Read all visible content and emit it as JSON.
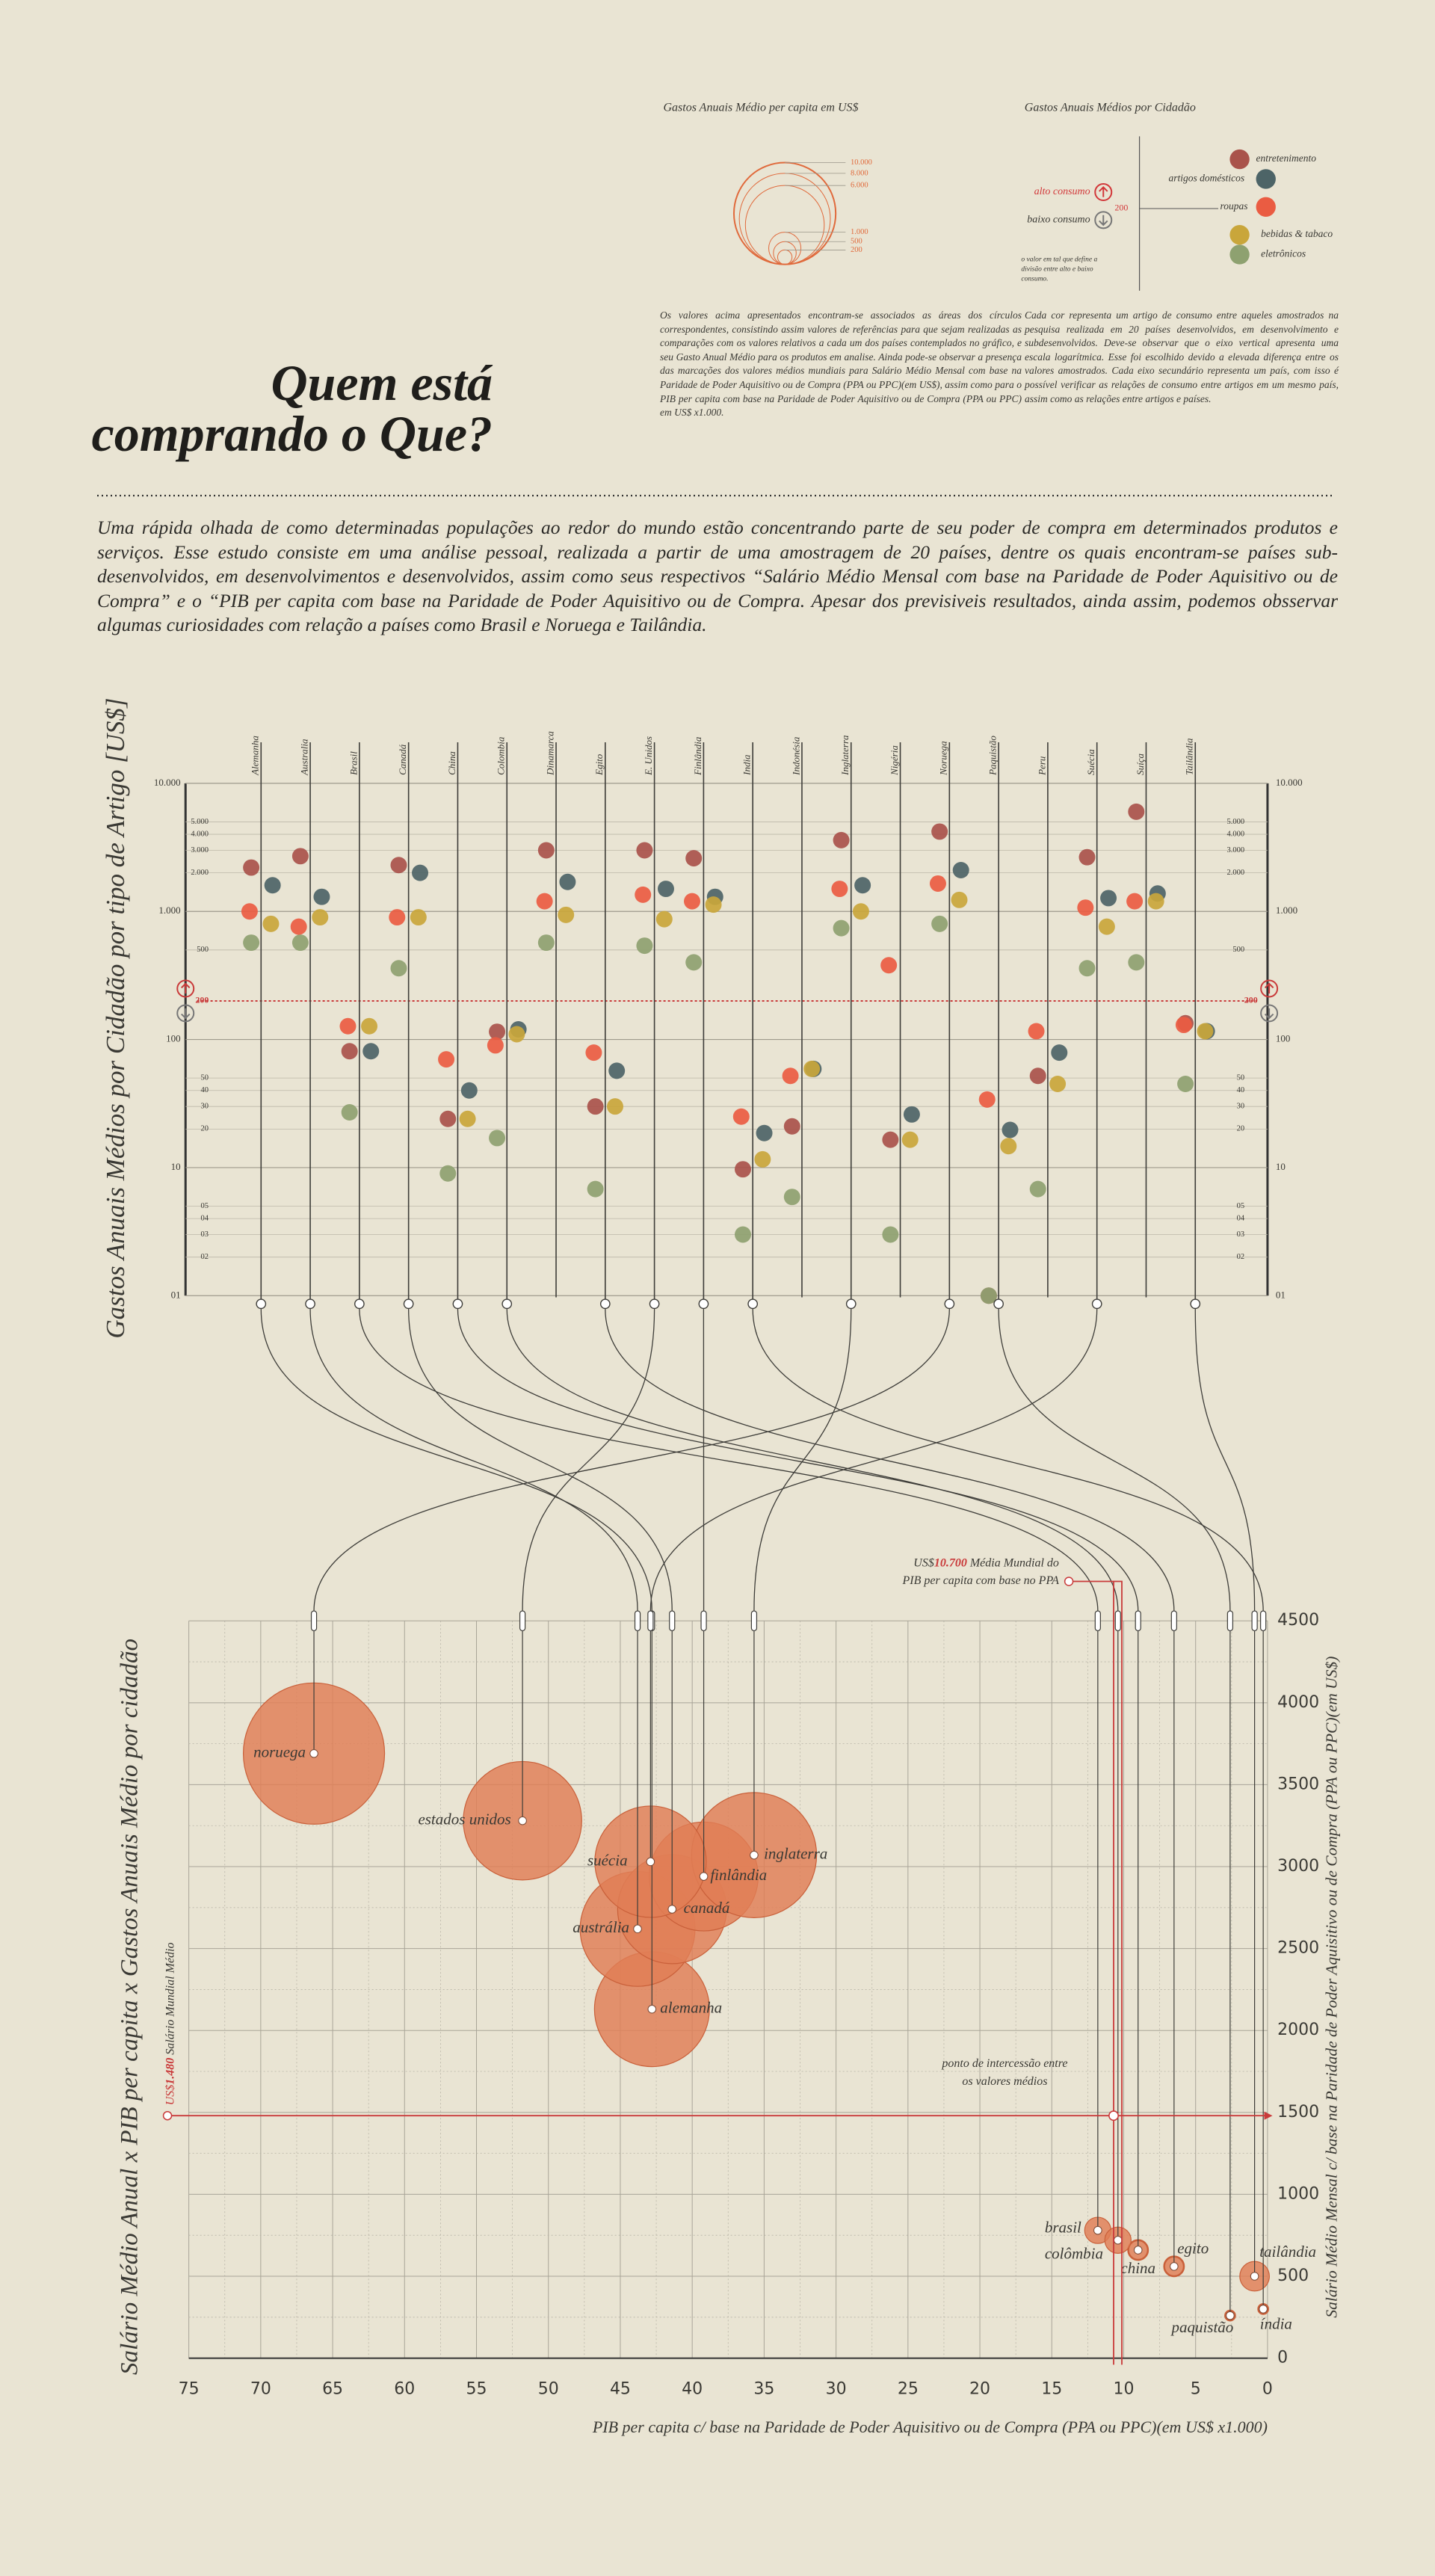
{
  "header": {
    "title_lines": [
      "Quem está",
      "comprando o Que?"
    ],
    "intro": "Uma rápida olhada de como determinadas populações ao redor do mundo estão concentrando parte de seu poder de compra em determinados produtos e serviços. Esse estudo consiste em uma análise pessoal, realizada a partir de uma amostragem de 20 países, dentre os quais encontram-se países sub-desenvolvidos, em desenvolvimentos e desenvolvidos, assim como seus respectivos “Salário Médio Mensal com base na Paridade de Poder Aquisitivo ou de Compra” e o “PIB per capita com base na Paridade de Poder Aquisitivo ou de Compra. Apesar dos previsiveis resultados, ainda assim, podemos obsservar algumas curiosidades com relação a países como Brasil e Noruega e Tailândia."
  },
  "legend_sizes": {
    "title": "Gastos Anuais Médio per capita em US$",
    "values": [
      {
        "value": 10000,
        "label": "10.000"
      },
      {
        "value": 8000,
        "label": "8.000"
      },
      {
        "value": 6000,
        "label": "6.000"
      },
      {
        "value": 1000,
        "label": "1.000"
      },
      500,
      200
    ],
    "note": "Os valores acima apresentados encontram-se associados as áreas dos círculos correspondentes, consistindo assim valores de referências para que sejam realizadas as comparações com os valores relativos a cada um dos países contemplados no gráfico, e seu Gasto Anual Médio para os produtos em analise. Ainda pode-se observar a presença das marcações dos valores médios mundiais para Salário Médio Mensal com base na Paridade de Poder Aquisitivo ou de Compra (PPA ou PPC)(em US$), assim como para o PIB per capita com base na Paridade de Poder Aquisitivo ou de Compra (PPA ou PPC) em US$ x1.000."
  },
  "legend_colors": {
    "title": "Gastos Anuais Médios por Cidadão",
    "high": "alto consumo",
    "low": "baixo consumo",
    "threshold": 200,
    "small_note": [
      "o valor em tal que define a",
      "divisão entre alto e baixo",
      "consumo."
    ],
    "note": "Cada cor representa um artigo de consumo entre aqueles amostrados na pesquisa realizada em 20 países desenvolvidos, em desenvolvimento e subdesenvolvidos. Deve-se observar que o eixo vertical apresenta uma escala logarítmica. Esse foi escolhido devido a elevada diferença entre os valores amostrados. Cada eixo secundário representa um país, com isso é possível verificar as relações de consumo entre artigos em um mesmo país, assim como as relações entre artigos e países."
  },
  "chart_data": [
    {
      "type": "dot",
      "y_label": "Gastos Anuais Médios por Cidadão por tipo de Artigo [US$]",
      "log_scale": true,
      "categories": [
        "Alemanha",
        "Australia",
        "Brasil",
        "Canadá",
        "China",
        "Colombia",
        "Dinamarca",
        "Egito",
        "E. Unidos",
        "Finlândia",
        "India",
        "Indonésia",
        "Inglaterra",
        "Nigéria",
        "Noruega",
        "Paquistão",
        "Peru",
        "Suécia",
        "Suíça",
        "Tailândia"
      ],
      "series": [
        {
          "name": "entretenimento",
          "color": "#a9534b",
          "values": [
            2200,
            2700,
            81,
            2300,
            24,
            115,
            3000,
            30,
            3000,
            2600,
            9.7,
            21,
            3600,
            16.5,
            4200,
            1,
            52,
            2650,
            6000,
            134
          ]
        },
        {
          "name": "artigos domésticos",
          "color": "#4d6467",
          "values": [
            1600,
            1300,
            81,
            2000,
            40,
            120,
            1700,
            57,
            1500,
            1300,
            18.6,
            59,
            1600,
            26,
            2100,
            19.7,
            79,
            1270,
            1380,
            116
          ]
        },
        {
          "name": "roupas",
          "color": "#ea5c42",
          "values": [
            1000,
            760,
            127,
            900,
            70,
            90,
            1200,
            79,
            1350,
            1200,
            25,
            52,
            1500,
            380,
            1650,
            34,
            116,
            1070,
            1200,
            130
          ]
        },
        {
          "name": "bebidas & tabaco",
          "color": "#c9a63b",
          "values": [
            800,
            900,
            127,
            900,
            24,
            110,
            940,
            30,
            870,
            1130,
            11.6,
            59,
            1000,
            16.5,
            1230,
            14.7,
            45,
            760,
            1200,
            116
          ]
        },
        {
          "name": "eletrônicos",
          "color": "#8ea170",
          "values": [
            570,
            570,
            27,
            360,
            9,
            17,
            570,
            6.8,
            540,
            400,
            3,
            5.9,
            740,
            3,
            800,
            1,
            6.8,
            360,
            400,
            45
          ]
        }
      ],
      "ylim": [
        1,
        10000
      ],
      "yticks": [
        {
          "value": 10000,
          "label": "10.000"
        },
        {
          "value": 5000,
          "label": "5.000"
        },
        {
          "value": 4000,
          "label": "4.000"
        },
        {
          "value": 3000,
          "label": "3.000"
        },
        {
          "value": 2000,
          "label": "2.000"
        },
        {
          "value": 1000,
          "label": "1.000"
        },
        500,
        100,
        50,
        40,
        30,
        20,
        10,
        {
          "value": 5,
          "label": "05"
        },
        {
          "value": 4,
          "label": "04"
        },
        {
          "value": 3,
          "label": "03"
        },
        {
          "value": 2,
          "label": "02"
        },
        {
          "value": 1,
          "label": "01"
        }
      ],
      "threshold": 200,
      "grid": true
    },
    {
      "type": "bubble",
      "y_label_left": "Salário Médio Anual x PIB per capita x Gastos Anuais Médio por cidadão",
      "y_label": "Salário Médio Mensal c/ base na Paridade de Poder Aquisitivo ou de Compra (PPA ou PPC)(em US$)",
      "x_label": "PIB per capita c/ base na Paridade de Poder Aquisitivo ou de Compra (PPA ou PPC)(em US$ x1.000)",
      "labels": [
        "alemanha",
        "austrália",
        "brasil",
        "canadá",
        "china",
        "colômbia",
        "egito",
        "estados unidos",
        "finlândia",
        "índia",
        "inglaterra",
        "noruega",
        "paquistão",
        "suécia",
        "tailândia"
      ],
      "x": [
        42.8,
        43.8,
        11.8,
        41.4,
        9.0,
        10.4,
        6.5,
        51.8,
        39.2,
        0.3,
        35.7,
        66.3,
        2.6,
        42.9,
        0.9
      ],
      "y": [
        2130,
        2620,
        780,
        2740,
        660,
        720,
        560,
        3280,
        2940,
        300,
        3070,
        3690,
        260,
        3030,
        500
      ],
      "sizes": [
        1225,
        1225,
        64,
        1100,
        36,
        64,
        36,
        1300,
        1100,
        9,
        1450,
        1850,
        9,
        1150,
        81
      ],
      "color": "#e07e55",
      "xlim": [
        75,
        0
      ],
      "xticks": [
        75,
        70,
        65,
        60,
        55,
        50,
        45,
        40,
        35,
        30,
        25,
        20,
        15,
        10,
        5,
        0
      ],
      "ylim": [
        0,
        4500
      ],
      "yticks": [
        0,
        500,
        1000,
        1500,
        2000,
        2500,
        3000,
        3500,
        4000,
        4500
      ],
      "grid": true,
      "mean_x": {
        "value": 10.7,
        "label": "10.700"
      },
      "mean_x_text": [
        "US$",
        "Média Mundial do",
        "PIB per capita com base no PPA"
      ],
      "mean_y": {
        "value": 1480,
        "label": "1.480"
      },
      "mean_y_text": [
        "US$",
        "Salário Mundial Médio"
      ],
      "intersection_note": [
        "ponto de intercessão entre",
        "os valores médios"
      ]
    }
  ]
}
